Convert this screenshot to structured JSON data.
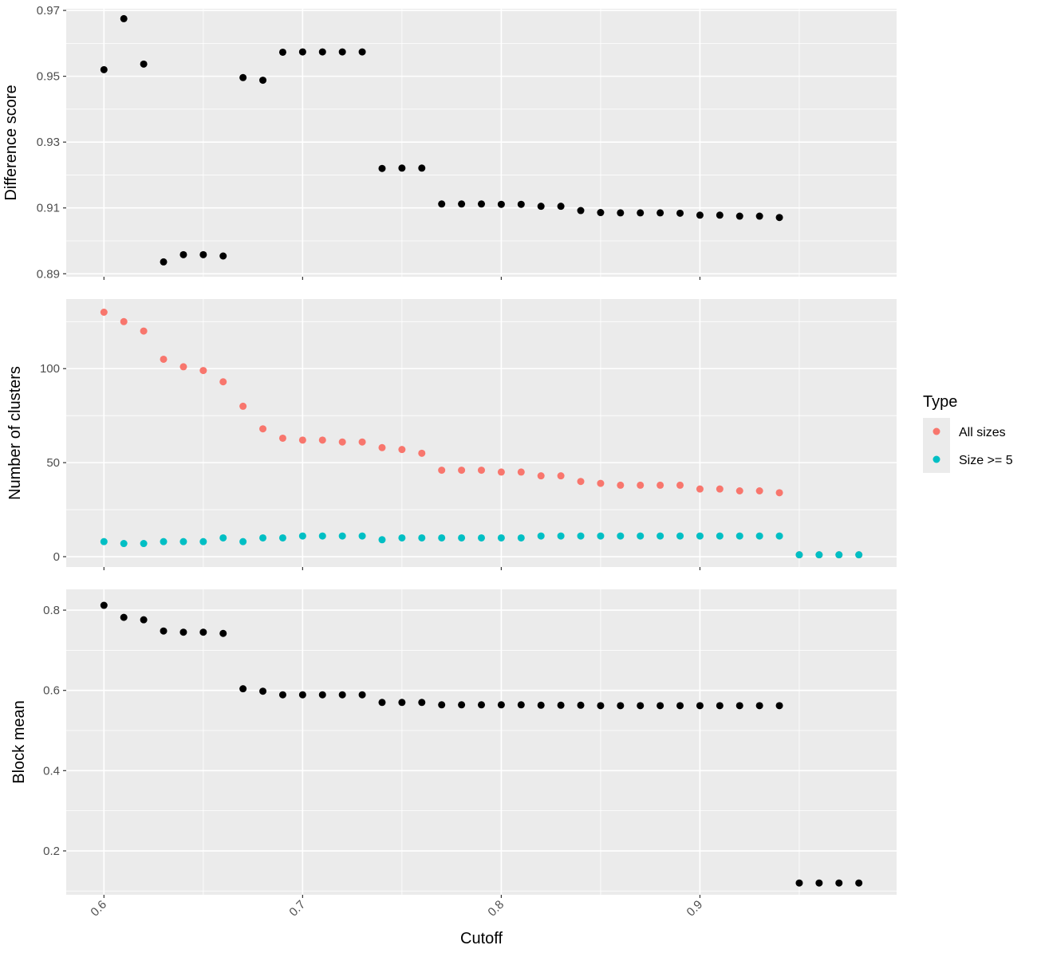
{
  "chart_data": [
    {
      "type": "scatter",
      "ylabel": "Difference score",
      "xlabel": "",
      "xlim": [
        0.581,
        0.999
      ],
      "ylim": [
        0.8891,
        0.9705
      ],
      "y_ticks": [
        0.89,
        0.91,
        0.93,
        0.95,
        0.97
      ],
      "y_tick_labels": [
        "0.89",
        "0.91",
        "0.93",
        "0.95",
        "0.97"
      ],
      "x_ticks": [
        0.6,
        0.7,
        0.8,
        0.9
      ],
      "series": [
        {
          "color": "#000000",
          "x": [
            0.6,
            0.61,
            0.62,
            0.63,
            0.64,
            0.65,
            0.66,
            0.67,
            0.68,
            0.69,
            0.7,
            0.71,
            0.72,
            0.73,
            0.74,
            0.75,
            0.76,
            0.77,
            0.78,
            0.79,
            0.8,
            0.81,
            0.82,
            0.83,
            0.84,
            0.85,
            0.86,
            0.87,
            0.88,
            0.89,
            0.9,
            0.91,
            0.92,
            0.93,
            0.94
          ],
          "y": [
            0.952,
            0.9675,
            0.9537,
            0.8936,
            0.8958,
            0.8958,
            0.8954,
            0.9496,
            0.9488,
            0.9573,
            0.9574,
            0.9574,
            0.9574,
            0.9574,
            0.922,
            0.9221,
            0.9221,
            0.9112,
            0.9112,
            0.9112,
            0.9111,
            0.9111,
            0.9105,
            0.9105,
            0.9092,
            0.9086,
            0.9085,
            0.9085,
            0.9085,
            0.9084,
            0.9078,
            0.9078,
            0.9075,
            0.9075,
            0.9071
          ]
        }
      ]
    },
    {
      "type": "scatter",
      "ylabel": "Number of clusters",
      "xlabel": "",
      "xlim": [
        0.581,
        0.999
      ],
      "ylim": [
        -5.5,
        137
      ],
      "y_ticks": [
        0,
        50,
        100
      ],
      "y_tick_labels": [
        "0",
        "50",
        "100"
      ],
      "x_ticks": [
        0.6,
        0.7,
        0.8,
        0.9
      ],
      "series": [
        {
          "name": "All sizes",
          "color": "#F8766D",
          "x": [
            0.6,
            0.61,
            0.62,
            0.63,
            0.64,
            0.65,
            0.66,
            0.67,
            0.68,
            0.69,
            0.7,
            0.71,
            0.72,
            0.73,
            0.74,
            0.75,
            0.76,
            0.77,
            0.78,
            0.79,
            0.8,
            0.81,
            0.82,
            0.83,
            0.84,
            0.85,
            0.86,
            0.87,
            0.88,
            0.89,
            0.9,
            0.91,
            0.92,
            0.93,
            0.94,
            0.95,
            0.96,
            0.97,
            0.98
          ],
          "y": [
            130,
            125,
            120,
            105,
            101,
            99,
            93,
            80,
            68,
            63,
            62,
            62,
            61,
            61,
            58,
            57,
            55,
            46,
            46,
            46,
            45,
            45,
            43,
            43,
            40,
            39,
            38,
            38,
            38,
            38,
            36,
            36,
            35,
            35,
            34,
            1,
            1,
            1,
            1
          ]
        },
        {
          "name": "Size >= 5",
          "color": "#00BFC4",
          "x": [
            0.6,
            0.61,
            0.62,
            0.63,
            0.64,
            0.65,
            0.66,
            0.67,
            0.68,
            0.69,
            0.7,
            0.71,
            0.72,
            0.73,
            0.74,
            0.75,
            0.76,
            0.77,
            0.78,
            0.79,
            0.8,
            0.81,
            0.82,
            0.83,
            0.84,
            0.85,
            0.86,
            0.87,
            0.88,
            0.89,
            0.9,
            0.91,
            0.92,
            0.93,
            0.94,
            0.95,
            0.96,
            0.97,
            0.98
          ],
          "y": [
            8,
            7,
            7,
            8,
            8,
            8,
            10,
            8,
            10,
            10,
            11,
            11,
            11,
            11,
            9,
            10,
            10,
            10,
            10,
            10,
            10,
            10,
            11,
            11,
            11,
            11,
            11,
            11,
            11,
            11,
            11,
            11,
            11,
            11,
            11,
            1,
            1,
            1,
            1
          ]
        }
      ]
    },
    {
      "type": "scatter",
      "ylabel": "Block mean",
      "xlabel": "Cutoff",
      "xlim": [
        0.581,
        0.999
      ],
      "ylim": [
        0.0906,
        0.8518
      ],
      "y_ticks": [
        0.2,
        0.4,
        0.6,
        0.8
      ],
      "y_tick_labels": [
        "0.2",
        "0.4",
        "0.6",
        "0.8"
      ],
      "x_ticks": [
        0.6,
        0.7,
        0.8,
        0.9
      ],
      "x_tick_labels": [
        "0.6",
        "0.7",
        "0.8",
        "0.9"
      ],
      "series": [
        {
          "color": "#000000",
          "x": [
            0.6,
            0.61,
            0.62,
            0.63,
            0.64,
            0.65,
            0.66,
            0.67,
            0.68,
            0.69,
            0.7,
            0.71,
            0.72,
            0.73,
            0.74,
            0.75,
            0.76,
            0.77,
            0.78,
            0.79,
            0.8,
            0.81,
            0.82,
            0.83,
            0.84,
            0.85,
            0.86,
            0.87,
            0.88,
            0.89,
            0.9,
            0.91,
            0.92,
            0.93,
            0.94,
            0.95,
            0.96,
            0.97,
            0.98
          ],
          "y": [
            0.812,
            0.782,
            0.776,
            0.748,
            0.745,
            0.745,
            0.742,
            0.604,
            0.598,
            0.589,
            0.589,
            0.589,
            0.589,
            0.589,
            0.57,
            0.57,
            0.57,
            0.564,
            0.564,
            0.564,
            0.564,
            0.564,
            0.563,
            0.563,
            0.563,
            0.562,
            0.562,
            0.562,
            0.562,
            0.562,
            0.562,
            0.562,
            0.562,
            0.562,
            0.562,
            0.12,
            0.12,
            0.12,
            0.12
          ]
        }
      ]
    }
  ],
  "legend": {
    "title": "Type",
    "placement": "right",
    "items": [
      {
        "label": "All sizes",
        "color": "#F8766D"
      },
      {
        "label": "Size >= 5",
        "color": "#00BFC4"
      }
    ]
  },
  "theme": {
    "panel_background": "#EBEBEB",
    "grid_color": "#FFFFFF",
    "grid": true
  }
}
